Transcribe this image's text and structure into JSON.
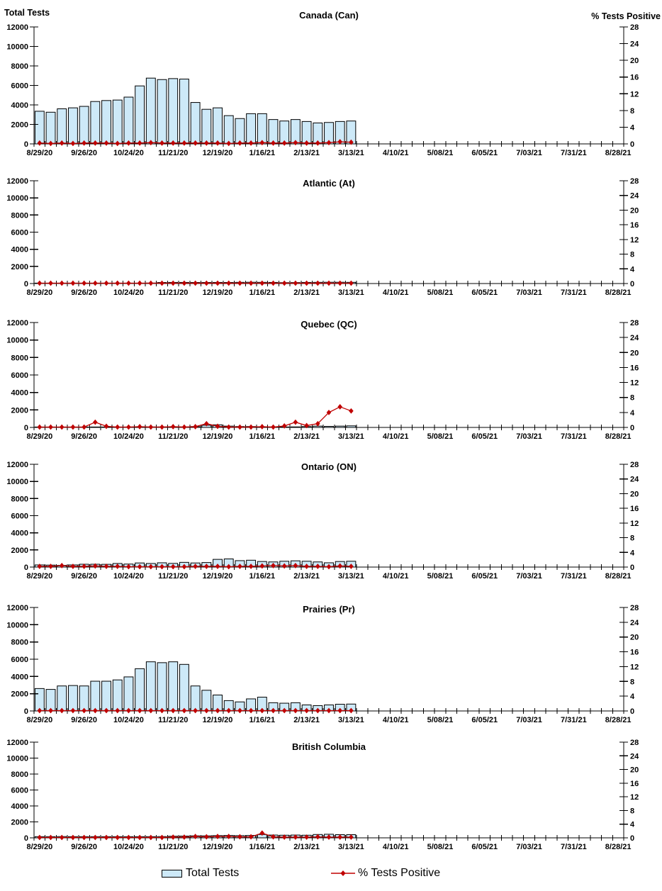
{
  "page": {
    "left_axis_title": "Total Tests",
    "right_axis_title": "% Tests Positive"
  },
  "legend": {
    "bars_label": "Total Tests",
    "line_label": "% Tests Positive"
  },
  "colors": {
    "bar_fill": "#cde9f8",
    "bar_border": "#000000",
    "line_color": "#c00000",
    "axis_color": "#000000",
    "text_color": "#000000"
  },
  "chart_data": {
    "type": "bar",
    "subtype": "multi-panel combo bar + line, weekly data",
    "weeks_on_axis": 53,
    "x_tick_labels": [
      "8/29/20",
      "9/26/20",
      "10/24/20",
      "11/21/20",
      "12/19/20",
      "1/16/21",
      "2/13/21",
      "3/13/21",
      "4/10/21",
      "5/08/21",
      "6/05/21",
      "7/03/21",
      "7/31/21",
      "8/28/21"
    ],
    "x_label_every_n_weeks": 4,
    "week_dates": [
      "8/29/20",
      "9/05/20",
      "9/12/20",
      "9/19/20",
      "9/26/20",
      "10/03/20",
      "10/10/20",
      "10/17/20",
      "10/24/20",
      "10/31/20",
      "11/07/20",
      "11/14/20",
      "11/21/20",
      "11/28/20",
      "12/05/20",
      "12/12/20",
      "12/19/20",
      "12/26/20",
      "1/02/21",
      "1/09/21",
      "1/16/21",
      "1/23/21",
      "1/30/21",
      "2/06/21",
      "2/13/21",
      "2/20/21",
      "2/27/21",
      "3/06/21",
      "3/13/21"
    ],
    "left_axis": {
      "title": "Total Tests",
      "min": 0,
      "max": 12000,
      "tick_step": 2000,
      "tick_labels": [
        "0",
        "2000",
        "4000",
        "6000",
        "8000",
        "10000",
        "12000"
      ]
    },
    "right_axis": {
      "title": "% Tests Positive",
      "min": 0,
      "max": 28,
      "tick_step": 4,
      "tick_labels": [
        "0",
        "4",
        "8",
        "12",
        "16",
        "20",
        "24",
        "28"
      ]
    },
    "grid": false,
    "legend_position": "bottom-center",
    "panels": [
      {
        "title": "Canada (Can)",
        "total_tests": [
          3350,
          3250,
          3600,
          3700,
          3850,
          4350,
          4450,
          4500,
          4800,
          5950,
          6750,
          6600,
          6700,
          6650,
          4250,
          3550,
          3700,
          2900,
          2600,
          3100,
          3100,
          2500,
          2350,
          2500,
          2300,
          2150,
          2200,
          2300,
          2350
        ],
        "pct_positive": [
          0.2,
          0.1,
          0.2,
          0.1,
          0.2,
          0.2,
          0.2,
          0.1,
          0.2,
          0.2,
          0.3,
          0.2,
          0.2,
          0.2,
          0.2,
          0.2,
          0.2,
          0.1,
          0.2,
          0.2,
          0.3,
          0.2,
          0.2,
          0.3,
          0.2,
          0.2,
          0.3,
          0.5,
          0.4
        ]
      },
      {
        "title": "Atlantic (At)",
        "total_tests": [
          30,
          30,
          40,
          40,
          50,
          50,
          50,
          50,
          40,
          50,
          60,
          120,
          130,
          130,
          120,
          120,
          130,
          120,
          140,
          150,
          140,
          130,
          100,
          110,
          130,
          140,
          150,
          150,
          140
        ],
        "pct_positive": [
          0.1,
          0.1,
          0.1,
          0.1,
          0.1,
          0.1,
          0.1,
          0.1,
          0.1,
          0.1,
          0.1,
          0.1,
          0.1,
          0.1,
          0.1,
          0.1,
          0.1,
          0.1,
          0.1,
          0.1,
          0.1,
          0.1,
          0.1,
          0.1,
          0.1,
          0.1,
          0.1,
          0.1,
          0.1
        ]
      },
      {
        "title": "Quebec (QC)",
        "total_tests": [
          20,
          20,
          30,
          30,
          40,
          50,
          40,
          40,
          50,
          60,
          60,
          60,
          60,
          60,
          100,
          250,
          300,
          150,
          100,
          100,
          80,
          60,
          50,
          60,
          100,
          150,
          120,
          150,
          180
        ],
        "pct_positive": [
          0.1,
          0.1,
          0.1,
          0.1,
          0.1,
          1.4,
          0.3,
          0.1,
          0.1,
          0.2,
          0.1,
          0.1,
          0.2,
          0.1,
          0.2,
          1.0,
          0.3,
          0.1,
          0.1,
          0.1,
          0.2,
          0.1,
          0.4,
          1.4,
          0.5,
          1.0,
          4.0,
          5.5,
          4.4
        ]
      },
      {
        "title": "Ontario (ON)",
        "total_tests": [
          250,
          230,
          200,
          250,
          330,
          330,
          320,
          420,
          350,
          480,
          420,
          500,
          430,
          550,
          480,
          530,
          900,
          950,
          750,
          800,
          650,
          600,
          680,
          730,
          680,
          600,
          500,
          650,
          680
        ],
        "pct_positive": [
          0.2,
          0.2,
          0.4,
          0.2,
          0.2,
          0.3,
          0.2,
          0.2,
          0.1,
          0.1,
          0.1,
          0.1,
          0.1,
          0.1,
          0.2,
          0.2,
          0.2,
          0.1,
          0.2,
          0.2,
          0.3,
          0.4,
          0.3,
          0.4,
          0.2,
          0.2,
          0.1,
          0.3,
          0.2
        ]
      },
      {
        "title": "Prairies (Pr)",
        "total_tests": [
          2600,
          2500,
          2900,
          2950,
          2900,
          3450,
          3450,
          3600,
          3950,
          4900,
          5700,
          5600,
          5700,
          5400,
          2900,
          2400,
          1850,
          1200,
          1050,
          1400,
          1600,
          950,
          900,
          950,
          700,
          620,
          700,
          780,
          800
        ],
        "pct_positive": [
          0.1,
          0.1,
          0.1,
          0.1,
          0.1,
          0.1,
          0.1,
          0.1,
          0.1,
          0.1,
          0.1,
          0.1,
          0.1,
          0.1,
          0.1,
          0.1,
          0.1,
          0.1,
          0.1,
          0.1,
          0.1,
          0.1,
          0.1,
          0.1,
          0.1,
          0.1,
          0.1,
          0.1,
          0.1
        ]
      },
      {
        "title": "British Columbia",
        "total_tests": [
          150,
          150,
          160,
          150,
          150,
          150,
          150,
          150,
          150,
          150,
          150,
          160,
          200,
          220,
          250,
          250,
          280,
          300,
          280,
          300,
          420,
          350,
          330,
          350,
          330,
          420,
          450,
          400,
          400
        ],
        "pct_positive": [
          0.1,
          0.1,
          0.1,
          0.1,
          0.1,
          0.1,
          0.1,
          0.1,
          0.1,
          0.1,
          0.1,
          0.1,
          0.2,
          0.2,
          0.4,
          0.3,
          0.4,
          0.4,
          0.3,
          0.3,
          1.4,
          0.3,
          0.2,
          0.2,
          0.2,
          0.3,
          0.2,
          0.2,
          0.2
        ]
      }
    ]
  }
}
